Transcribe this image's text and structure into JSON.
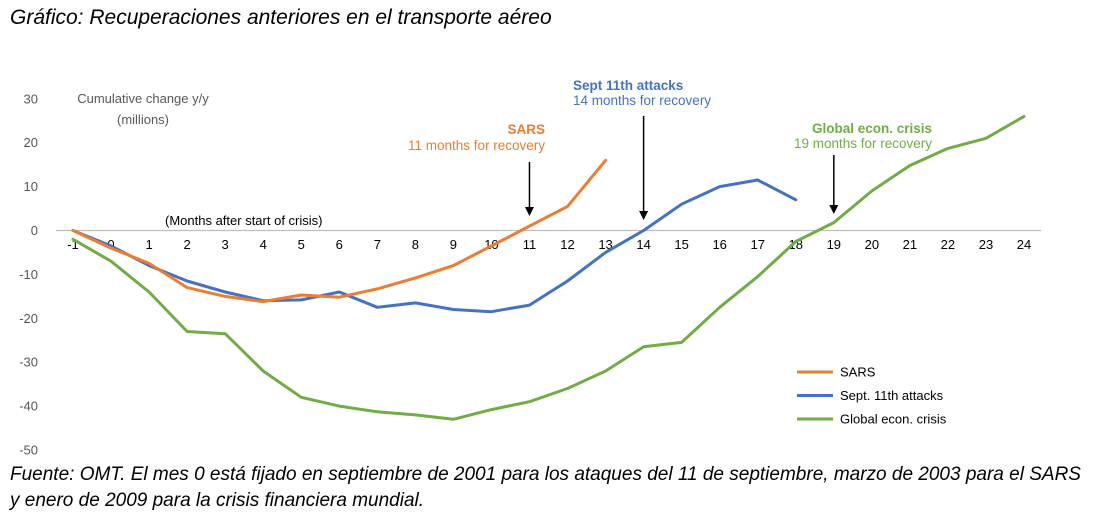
{
  "title": "Gráfico: Recuperaciones anteriores en el transporte aéreo",
  "source": "Fuente: OMT. El mes 0 está fijado en septiembre de 2001 para los ataques del 11 de septiembre, marzo de 2003 para el SARS y enero de 2009 para la crisis financiera mundial.",
  "chart_data": {
    "type": "line",
    "ylabel": "Cumulative change y/y\n(millions)",
    "xlabel": "(Months after start of crisis)",
    "ylim": [
      -50,
      30
    ],
    "yticks": [
      30,
      20,
      10,
      0,
      -10,
      -20,
      -30,
      -40,
      -50
    ],
    "x": [
      -1,
      0,
      1,
      2,
      3,
      4,
      5,
      6,
      7,
      8,
      9,
      10,
      11,
      12,
      13,
      14,
      15,
      16,
      17,
      18,
      19,
      20,
      21,
      22,
      23,
      24
    ],
    "xlim": [
      -1,
      24
    ],
    "grid": false,
    "legend_position": "bottom-right",
    "series": [
      {
        "name": "SARS",
        "color": "#ED7D31",
        "values": [
          0,
          -4,
          -7.5,
          -13,
          -15,
          -16.2,
          -14.7,
          -15.2,
          -13.3,
          -10.8,
          -8,
          -3.5,
          1,
          5.5,
          16,
          null,
          null,
          null,
          null,
          null,
          null,
          null,
          null,
          null,
          null,
          null
        ]
      },
      {
        "name": "Sept. 11th attacks",
        "color": "#4472C4",
        "values": [
          0,
          -3.5,
          -8,
          -11.5,
          -14,
          -16,
          -15.8,
          -14,
          -17.5,
          -16.5,
          -18,
          -18.5,
          -17,
          -11.5,
          -5,
          0,
          6,
          10,
          11.5,
          7,
          null,
          null,
          null,
          null,
          null,
          null
        ]
      },
      {
        "name": "Global econ. crisis",
        "color": "#70AD47",
        "values": [
          -2,
          -7,
          -14,
          -23,
          -23.5,
          -32,
          -38,
          -40,
          -41.3,
          -42,
          -43,
          -40.8,
          -39,
          -36,
          -32,
          -26.5,
          -25.5,
          -17.5,
          -10.5,
          -2.5,
          1.8,
          9,
          14.8,
          18.7,
          21,
          26
        ]
      }
    ],
    "annotations": [
      {
        "title": "SARS",
        "subtitle": "11 months for recovery",
        "x": 11,
        "color": "#ED7D31"
      },
      {
        "title": "Sept 11th attacks",
        "subtitle": "14 months for recovery",
        "x": 14,
        "color": "#4472C4"
      },
      {
        "title": "Global econ. crisis",
        "subtitle": "19 months for recovery",
        "x": 19,
        "color": "#70AD47"
      }
    ]
  }
}
